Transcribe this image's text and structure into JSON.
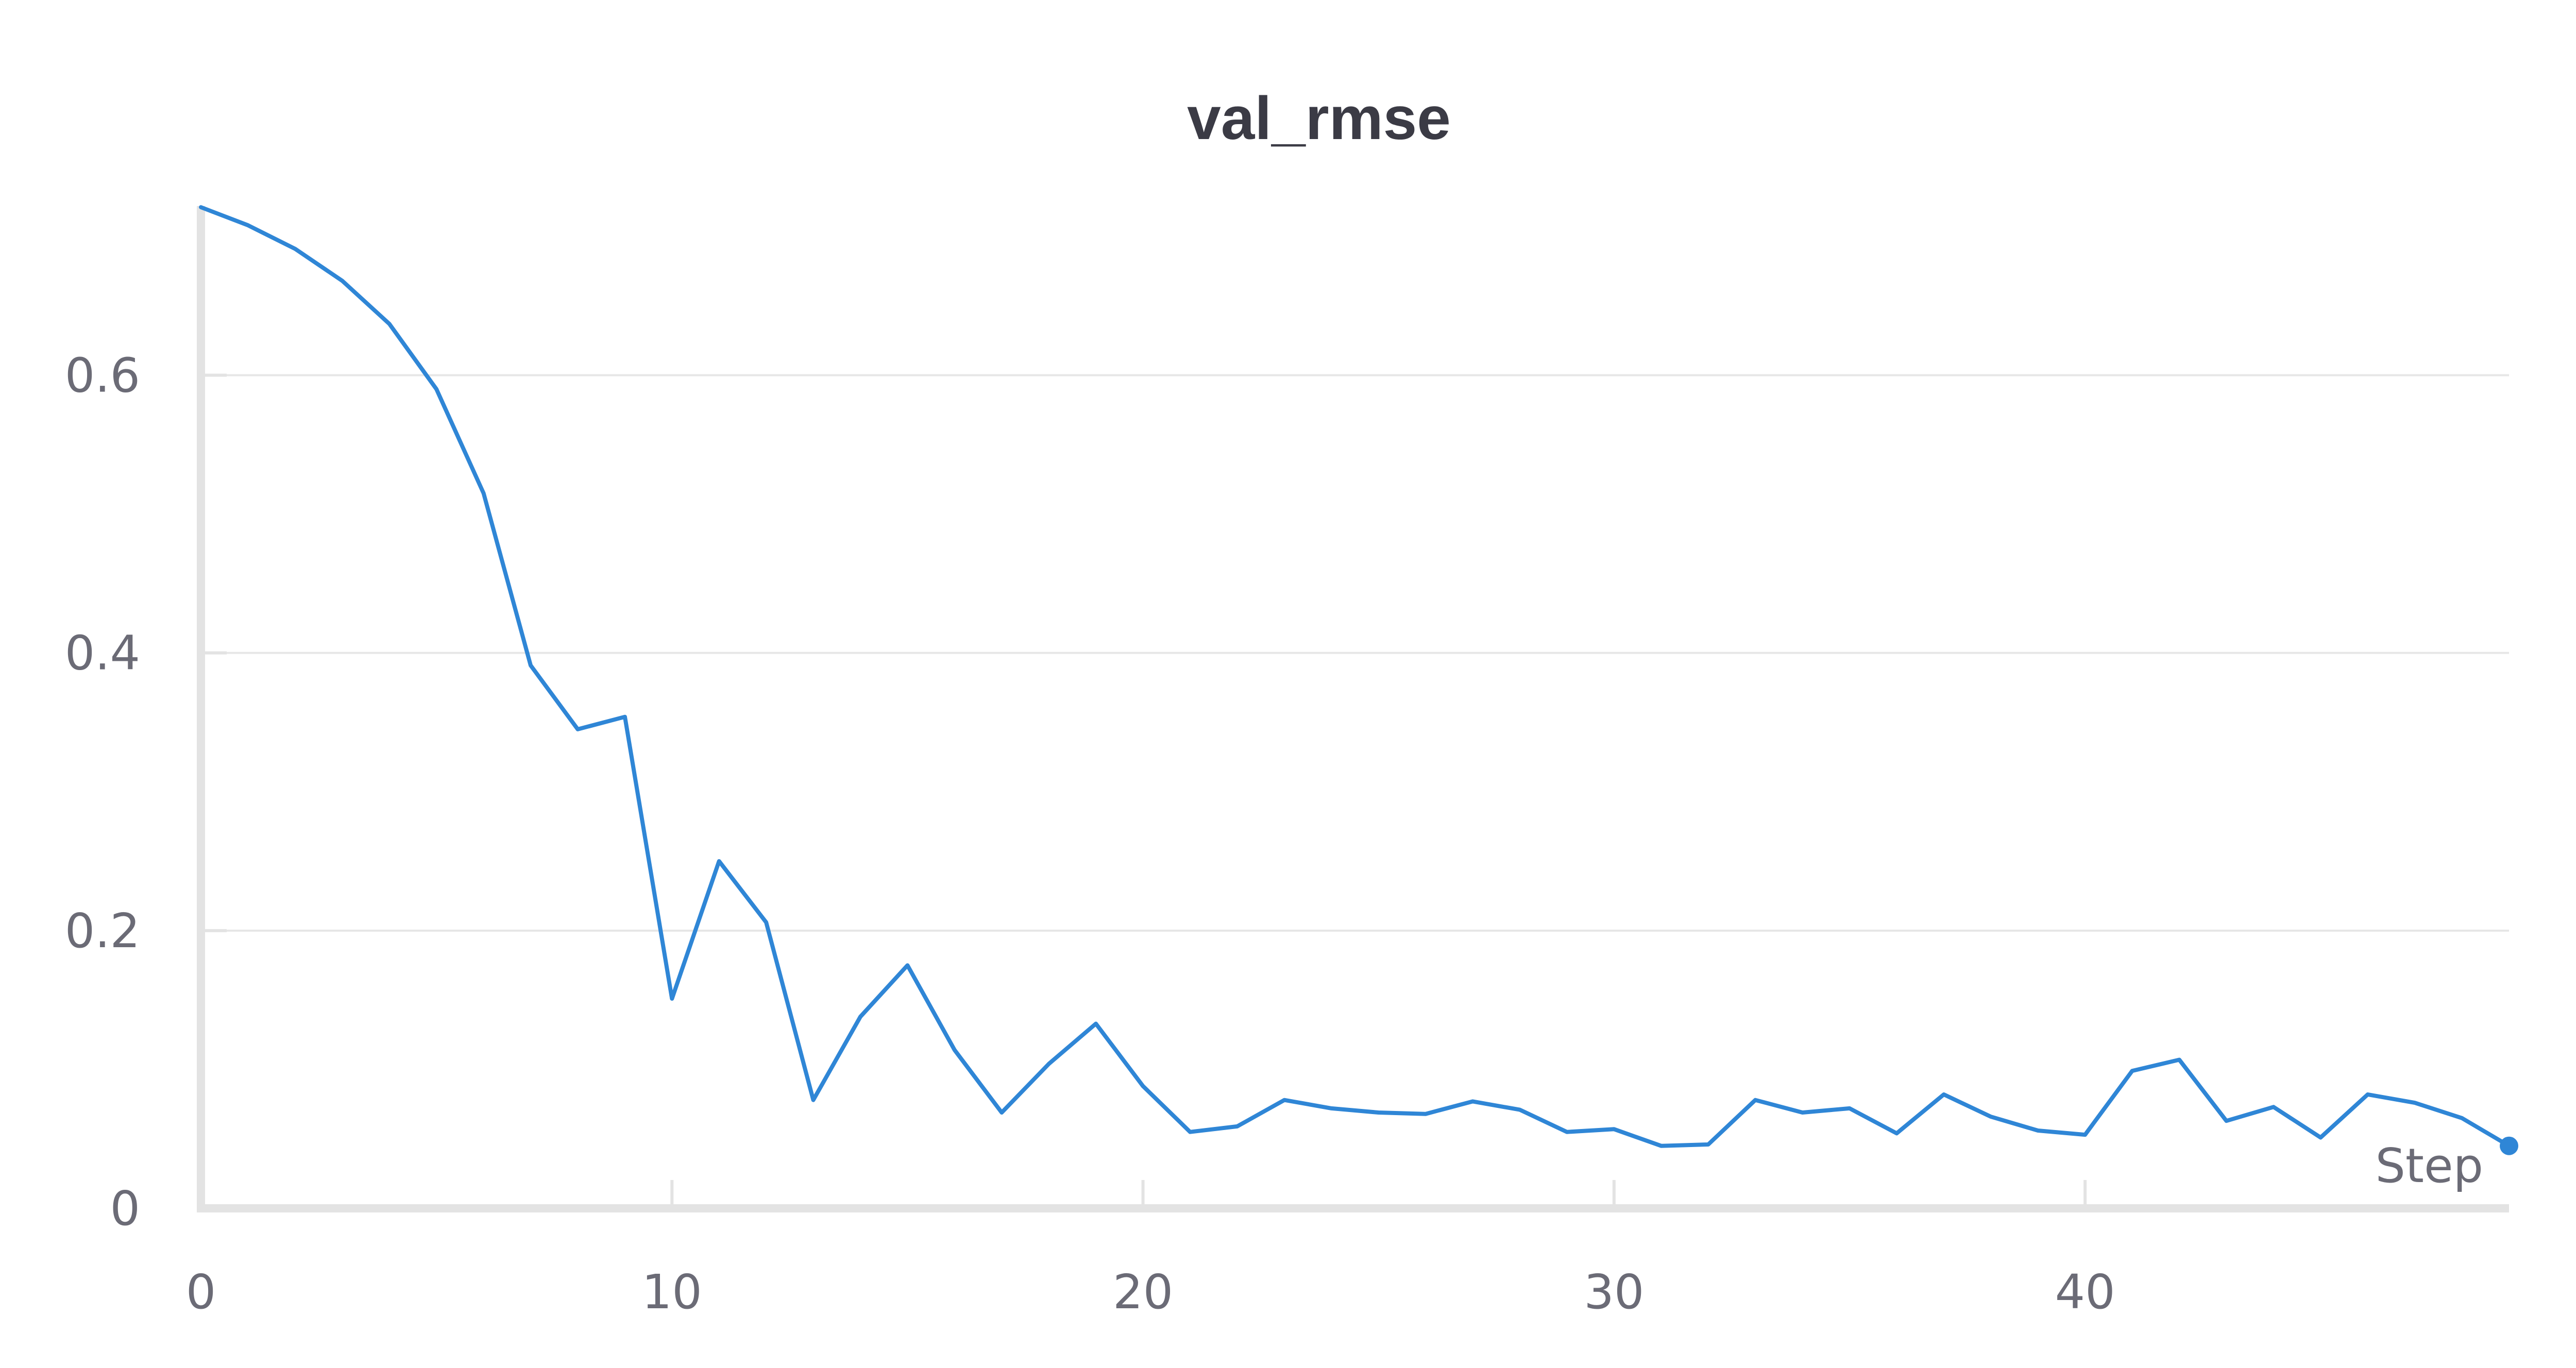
{
  "chart_data": {
    "type": "line",
    "title": "val_rmse",
    "xlabel": "Step",
    "ylabel": "",
    "xlim": [
      0,
      49
    ],
    "ylim": [
      0,
      0.72
    ],
    "x_ticks": [
      "0",
      "10",
      "20",
      "30",
      "40"
    ],
    "x_tick_values": [
      0,
      10,
      20,
      30,
      40
    ],
    "y_ticks": [
      "0",
      "0.2",
      "0.4",
      "0.6"
    ],
    "y_tick_values": [
      0,
      0.2,
      0.4,
      0.6
    ],
    "grid": true,
    "legend": "none",
    "color": "#2f86d6",
    "series": [
      {
        "x": [
          0,
          1,
          2,
          3,
          4,
          5,
          6,
          7,
          8,
          9,
          10,
          11,
          12,
          13,
          14,
          15,
          16,
          17,
          18,
          19,
          20,
          21,
          22,
          23,
          24,
          25,
          26,
          27,
          28,
          29,
          30,
          31,
          32,
          33,
          34,
          35,
          36,
          37,
          38,
          39,
          40,
          41,
          42,
          43,
          44,
          45,
          46,
          47,
          48,
          49
        ],
        "values": [
          0.721,
          0.708,
          0.691,
          0.668,
          0.637,
          0.59,
          0.515,
          0.391,
          0.345,
          0.354,
          0.151,
          0.25,
          0.206,
          0.078,
          0.138,
          0.175,
          0.114,
          0.069,
          0.104,
          0.133,
          0.088,
          0.055,
          0.059,
          0.078,
          0.072,
          0.069,
          0.068,
          0.077,
          0.071,
          0.055,
          0.057,
          0.045,
          0.046,
          0.078,
          0.069,
          0.072,
          0.054,
          0.082,
          0.066,
          0.056,
          0.053,
          0.099,
          0.107,
          0.063,
          0.073,
          0.051,
          0.082,
          0.076,
          0.065,
          0.045
        ]
      }
    ]
  }
}
